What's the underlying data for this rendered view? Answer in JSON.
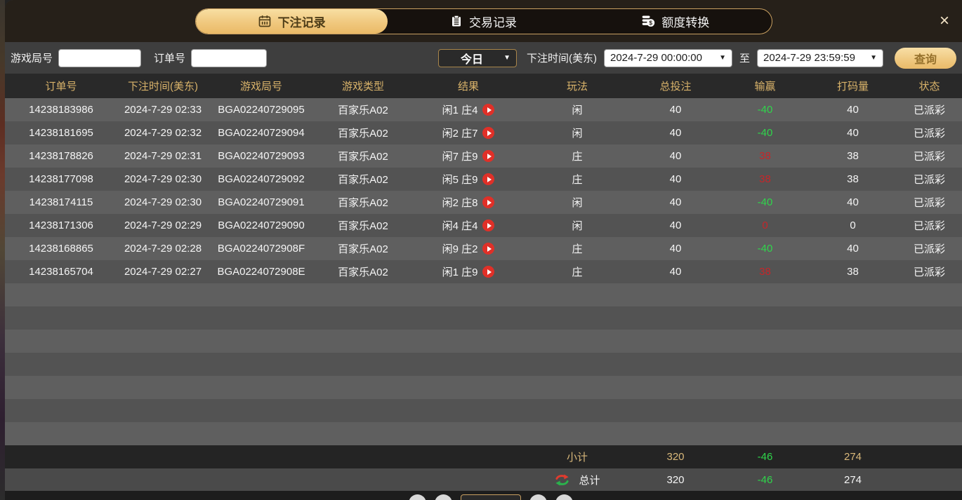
{
  "tabs": [
    {
      "label": "下注记录",
      "icon": "calendar-icon",
      "active": true
    },
    {
      "label": "交易记录",
      "icon": "clipboard-icon",
      "active": false
    },
    {
      "label": "额度转换",
      "icon": "coins-icon",
      "active": false
    }
  ],
  "close_label": "×",
  "filters": {
    "game_round_label": "游戏局号",
    "order_no_label": "订单号",
    "range_select": "今日",
    "bet_time_label": "下注时间(美东)",
    "time_from": "2024-7-29 00:00:00",
    "to_label": "至",
    "time_to": "2024-7-29 23:59:59",
    "query_button": "查询"
  },
  "table": {
    "headers": [
      "订单号",
      "下注时间(美东)",
      "游戏局号",
      "游戏类型",
      "结果",
      "玩法",
      "总投注",
      "输赢",
      "打码量",
      "状态"
    ],
    "rows": [
      {
        "order": "14238183986",
        "time": "2024-7-29 02:33",
        "round": "BGA02240729095",
        "game": "百家乐A02",
        "result": "闲1 庄4",
        "play": "闲",
        "total": "40",
        "winloss": "-40",
        "wl_color": "green",
        "turnover": "40",
        "status": "已派彩"
      },
      {
        "order": "14238181695",
        "time": "2024-7-29 02:32",
        "round": "BGA02240729094",
        "game": "百家乐A02",
        "result": "闲2 庄7",
        "play": "闲",
        "total": "40",
        "winloss": "-40",
        "wl_color": "green",
        "turnover": "40",
        "status": "已派彩"
      },
      {
        "order": "14238178826",
        "time": "2024-7-29 02:31",
        "round": "BGA02240729093",
        "game": "百家乐A02",
        "result": "闲7 庄9",
        "play": "庄",
        "total": "40",
        "winloss": "38",
        "wl_color": "red",
        "turnover": "38",
        "status": "已派彩"
      },
      {
        "order": "14238177098",
        "time": "2024-7-29 02:30",
        "round": "BGA02240729092",
        "game": "百家乐A02",
        "result": "闲5 庄9",
        "play": "庄",
        "total": "40",
        "winloss": "38",
        "wl_color": "red",
        "turnover": "38",
        "status": "已派彩"
      },
      {
        "order": "14238174115",
        "time": "2024-7-29 02:30",
        "round": "BGA02240729091",
        "game": "百家乐A02",
        "result": "闲2 庄8",
        "play": "闲",
        "total": "40",
        "winloss": "-40",
        "wl_color": "green",
        "turnover": "40",
        "status": "已派彩"
      },
      {
        "order": "14238171306",
        "time": "2024-7-29 02:29",
        "round": "BGA02240729090",
        "game": "百家乐A02",
        "result": "闲4 庄4",
        "play": "闲",
        "total": "40",
        "winloss": "0",
        "wl_color": "red",
        "turnover": "0",
        "status": "已派彩"
      },
      {
        "order": "14238168865",
        "time": "2024-7-29 02:28",
        "round": "BGA0224072908F",
        "game": "百家乐A02",
        "result": "闲9 庄2",
        "play": "庄",
        "total": "40",
        "winloss": "-40",
        "wl_color": "green",
        "turnover": "40",
        "status": "已派彩"
      },
      {
        "order": "14238165704",
        "time": "2024-7-29 02:27",
        "round": "BGA0224072908E",
        "game": "百家乐A02",
        "result": "闲1 庄9",
        "play": "庄",
        "total": "40",
        "winloss": "38",
        "wl_color": "red",
        "turnover": "38",
        "status": "已派彩"
      }
    ],
    "empty_row_count": 7,
    "subtotal": {
      "label": "小计",
      "total": "320",
      "winloss": "-46",
      "turnover": "274"
    },
    "grandtotal": {
      "label": "总计",
      "total": "320",
      "winloss": "-46",
      "turnover": "274"
    }
  },
  "colors": {
    "accent_gold": "#d9b36a",
    "win_green": "#2fd64b",
    "loss_red": "#c5262a",
    "active_tab_gold": "#f0c87e",
    "play_icon_red": "#e03028"
  }
}
